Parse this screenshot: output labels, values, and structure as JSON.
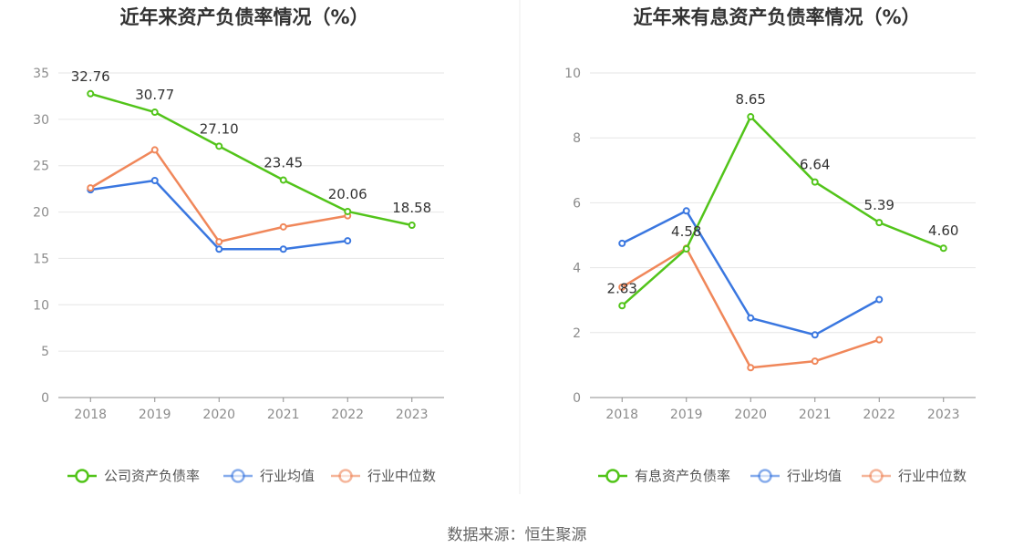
{
  "source": "数据来源：恒生聚源",
  "chart_data": [
    {
      "type": "line",
      "title": "近年来资产负债率情况（%）",
      "x": [
        "2018",
        "2019",
        "2020",
        "2021",
        "2022",
        "2023"
      ],
      "ylim": [
        0,
        35
      ],
      "yticks": [
        0,
        5,
        10,
        15,
        20,
        25,
        30,
        35
      ],
      "series": [
        {
          "name": "公司资产负债率",
          "color": "#52c41a",
          "values": [
            32.76,
            30.77,
            27.1,
            23.45,
            20.06,
            18.58
          ],
          "labels": [
            "32.76",
            "30.77",
            "27.10",
            "23.45",
            "20.06",
            "18.58"
          ]
        },
        {
          "name": "行业均值",
          "color": "#3a77e0",
          "values": [
            22.4,
            23.4,
            16.0,
            16.0,
            16.9,
            null
          ]
        },
        {
          "name": "行业中位数",
          "color": "#f0875a",
          "values": [
            22.6,
            26.7,
            16.8,
            18.4,
            19.6,
            null
          ]
        }
      ]
    },
    {
      "type": "line",
      "title": "近年来有息资产负债率情况（%）",
      "x": [
        "2018",
        "2019",
        "2020",
        "2021",
        "2022",
        "2023"
      ],
      "ylim": [
        0,
        10
      ],
      "yticks": [
        0,
        2,
        4,
        6,
        8,
        10
      ],
      "series": [
        {
          "name": "有息资产负债率",
          "color": "#52c41a",
          "values": [
            2.83,
            4.58,
            8.65,
            6.64,
            5.39,
            4.6
          ],
          "labels": [
            "2.83",
            "4.58",
            "8.65",
            "6.64",
            "5.39",
            "4.60"
          ]
        },
        {
          "name": "行业均值",
          "color": "#3a77e0",
          "values": [
            4.75,
            5.75,
            2.45,
            1.93,
            3.02,
            null
          ]
        },
        {
          "name": "行业中位数",
          "color": "#f0875a",
          "values": [
            3.4,
            4.6,
            0.92,
            1.12,
            1.78,
            null
          ]
        }
      ]
    }
  ]
}
